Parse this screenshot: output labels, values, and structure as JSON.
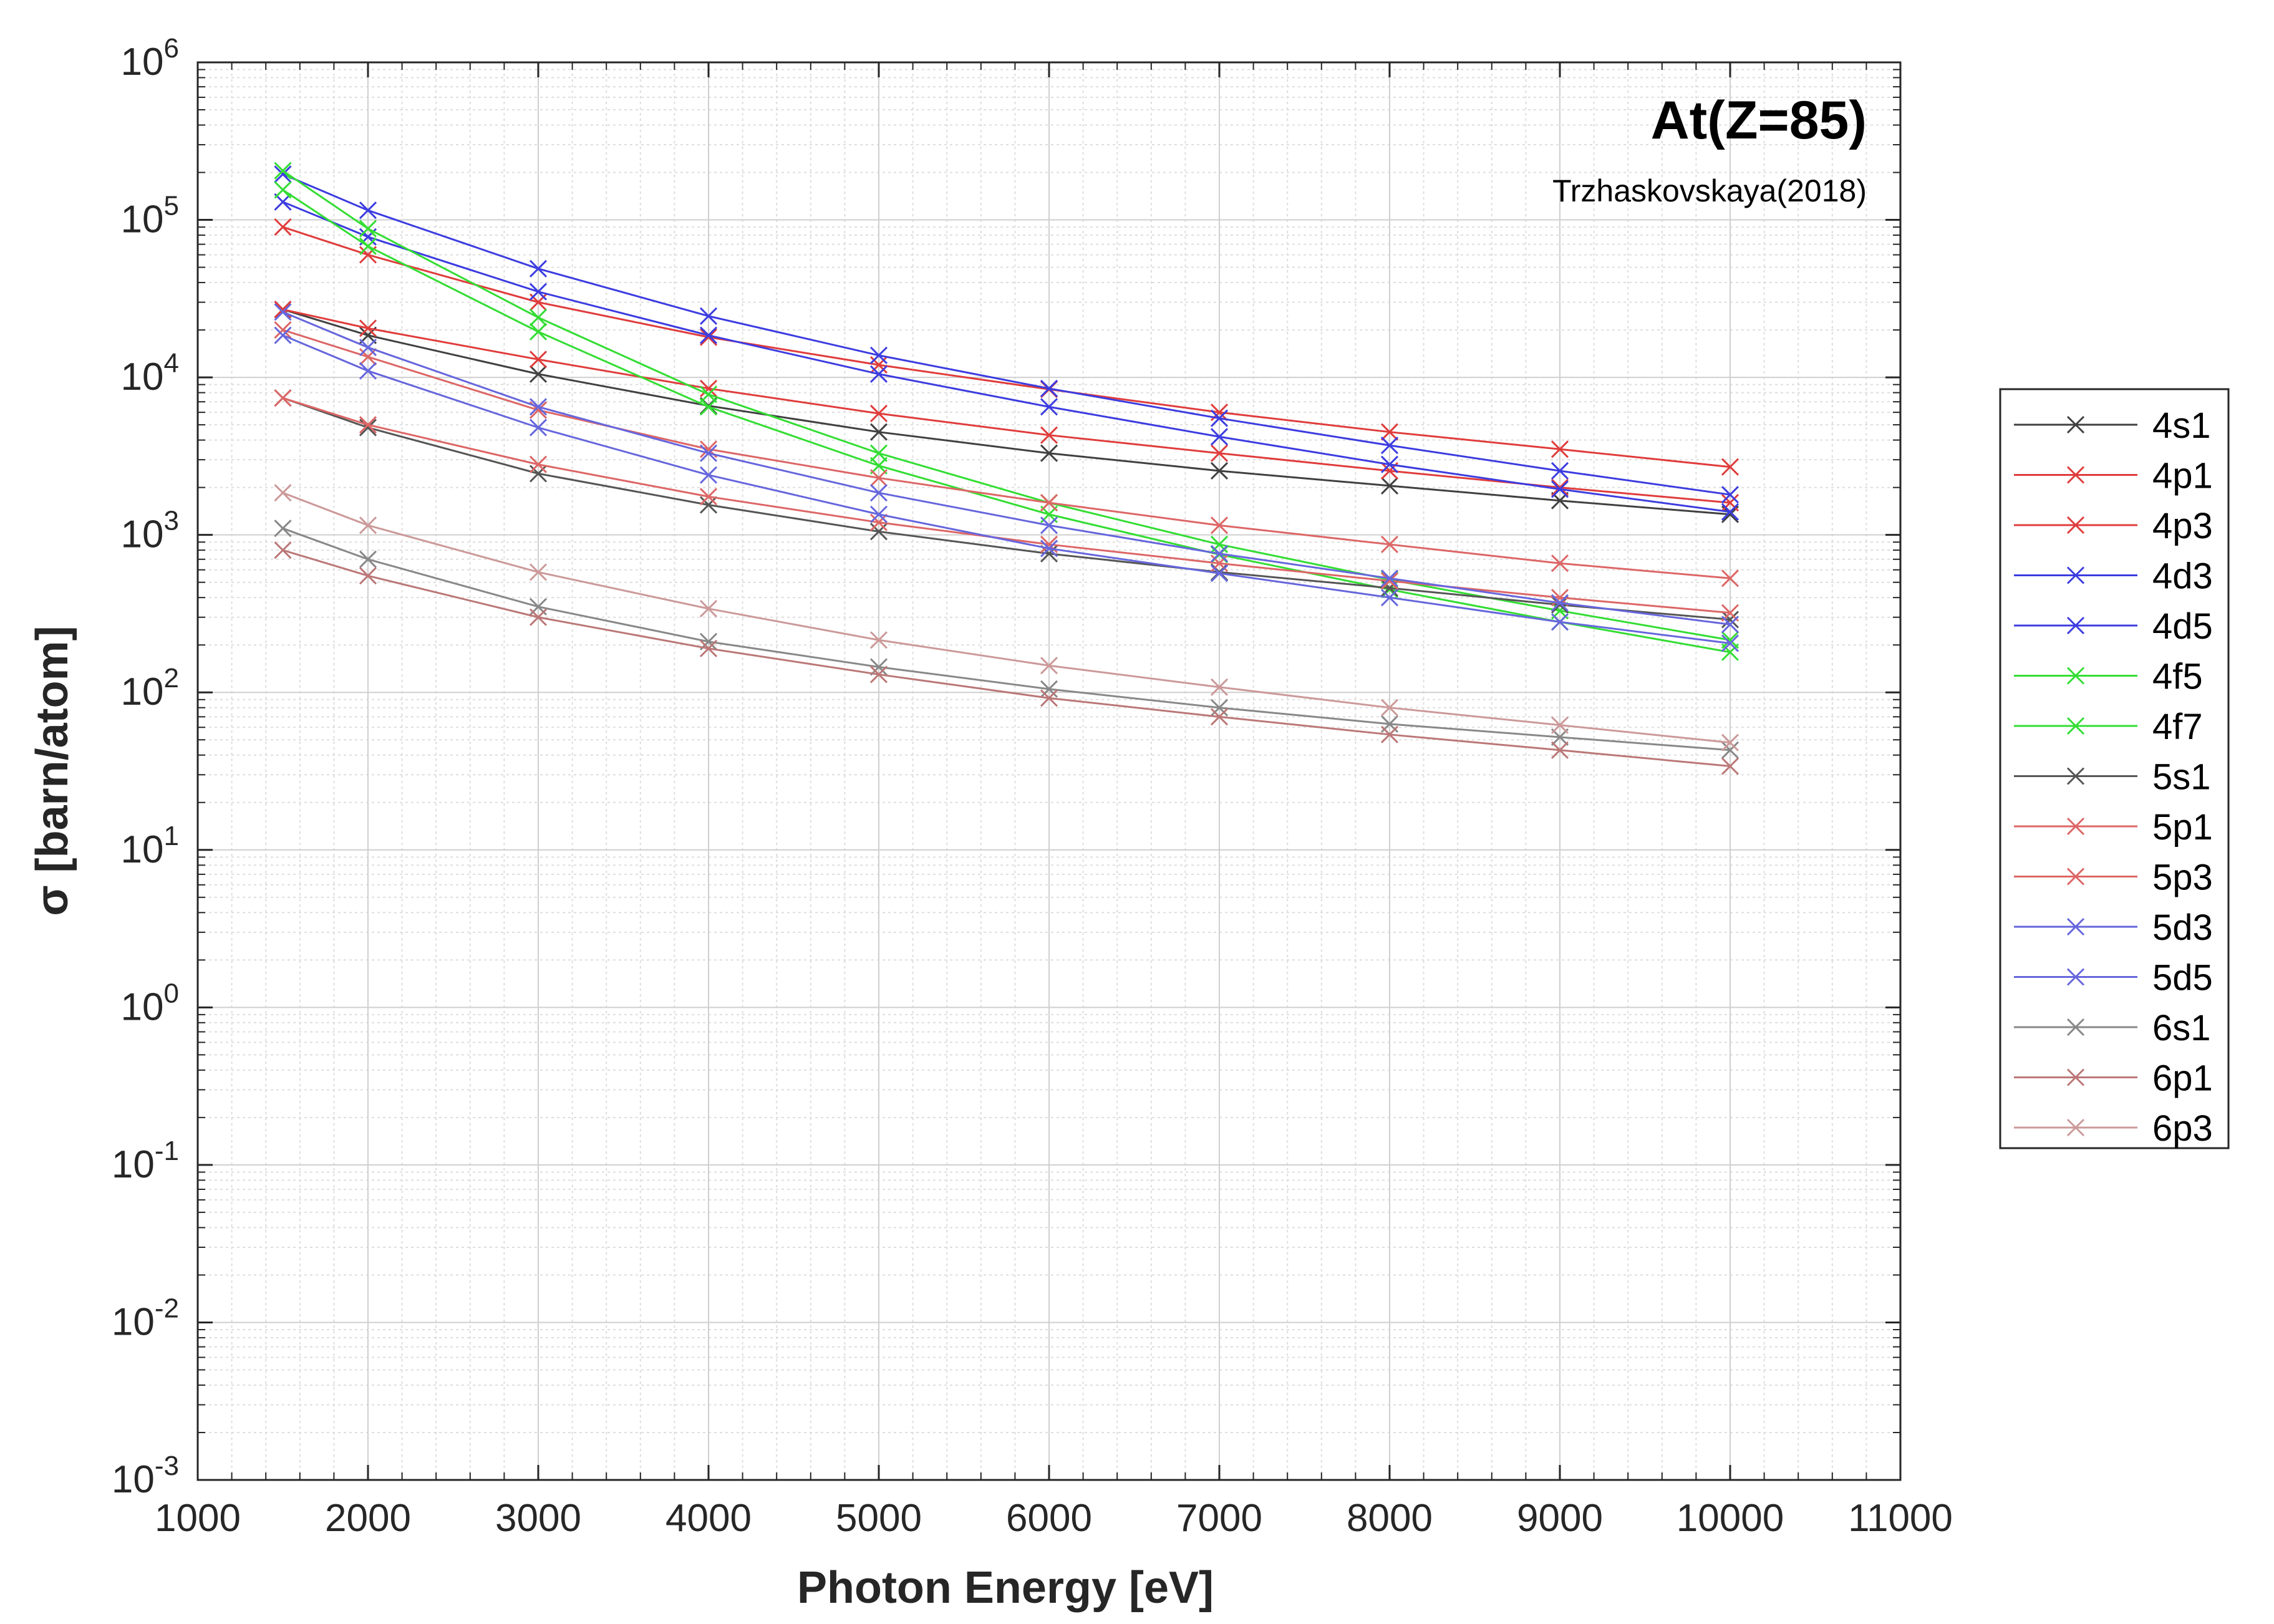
{
  "chart_data": {
    "type": "line",
    "title": "At(Z=85)",
    "subtitle": "Trzhaskovskaya(2018)",
    "xlabel": "Photon Energy [eV]",
    "ylabel": "σ [barn/atom]",
    "x_scale": "linear",
    "y_scale": "log",
    "xlim": [
      1000,
      11000
    ],
    "ylim": [
      0.001,
      1000000
    ],
    "grid": true,
    "minor_grid": true,
    "legend_position": "outside-right",
    "x_ticks": [
      "1000",
      "2000",
      "3000",
      "4000",
      "5000",
      "6000",
      "7000",
      "8000",
      "9000",
      "10000",
      "11000"
    ],
    "y_ticks": [
      {
        "base": "10",
        "exp": "-3"
      },
      {
        "base": "10",
        "exp": "-2"
      },
      {
        "base": "10",
        "exp": "-1"
      },
      {
        "base": "10",
        "exp": "0"
      },
      {
        "base": "10",
        "exp": "1"
      },
      {
        "base": "10",
        "exp": "2"
      },
      {
        "base": "10",
        "exp": "3"
      },
      {
        "base": "10",
        "exp": "4"
      },
      {
        "base": "10",
        "exp": "5"
      },
      {
        "base": "10",
        "exp": "6"
      }
    ],
    "x": [
      1500,
      2000,
      3000,
      4000,
      5000,
      6000,
      7000,
      8000,
      9000,
      10000
    ],
    "series": [
      {
        "name": "4s1",
        "color": "#404040",
        "values": [
          27000,
          18500,
          10500,
          6600,
          4500,
          3300,
          2550,
          2050,
          1650,
          1350
        ]
      },
      {
        "name": "4p1",
        "color": "#e03c3c",
        "values": [
          27000,
          20500,
          13000,
          8500,
          5900,
          4300,
          3300,
          2550,
          2000,
          1600
        ]
      },
      {
        "name": "4p3",
        "color": "#e03c3c",
        "values": [
          90000,
          60000,
          30000,
          18000,
          12000,
          8400,
          6000,
          4500,
          3500,
          2700
        ]
      },
      {
        "name": "4d3",
        "color": "#3c3ce0",
        "values": [
          130000,
          78000,
          35000,
          18500,
          10500,
          6500,
          4200,
          2800,
          1950,
          1400
        ]
      },
      {
        "name": "4d5",
        "color": "#3c3ce0",
        "values": [
          195000,
          115000,
          49000,
          24500,
          13800,
          8500,
          5500,
          3700,
          2550,
          1800
        ]
      },
      {
        "name": "4f5",
        "color": "#33dd33",
        "values": [
          155000,
          68000,
          19500,
          6500,
          2750,
          1350,
          750,
          450,
          280,
          180
        ]
      },
      {
        "name": "4f7",
        "color": "#33dd33",
        "values": [
          205000,
          88000,
          24000,
          7800,
          3300,
          1600,
          870,
          520,
          330,
          215
        ]
      },
      {
        "name": "5s1",
        "color": "#555555",
        "values": [
          7400,
          4800,
          2450,
          1550,
          1050,
          760,
          580,
          460,
          360,
          290
        ]
      },
      {
        "name": "5p1",
        "color": "#dd6666",
        "values": [
          7400,
          5000,
          2800,
          1750,
          1200,
          870,
          660,
          510,
          400,
          320
        ]
      },
      {
        "name": "5p3",
        "color": "#dd6666",
        "values": [
          20000,
          13500,
          6200,
          3500,
          2300,
          1600,
          1150,
          870,
          660,
          530
        ]
      },
      {
        "name": "5d3",
        "color": "#6666dd",
        "values": [
          18500,
          11000,
          4800,
          2400,
          1350,
          820,
          570,
          400,
          280,
          205
        ]
      },
      {
        "name": "5d5",
        "color": "#6666dd",
        "values": [
          26000,
          15500,
          6500,
          3300,
          1850,
          1150,
          760,
          530,
          370,
          270
        ]
      },
      {
        "name": "6s1",
        "color": "#888888",
        "values": [
          1100,
          700,
          350,
          210,
          145,
          105,
          80,
          63,
          52,
          43
        ]
      },
      {
        "name": "6p1",
        "color": "#bb7777",
        "values": [
          800,
          550,
          300,
          190,
          130,
          92,
          70,
          54,
          43,
          34
        ]
      },
      {
        "name": "6p3",
        "color": "#cc9999",
        "values": [
          1850,
          1150,
          580,
          340,
          215,
          148,
          108,
          80,
          62,
          48
        ]
      }
    ]
  }
}
